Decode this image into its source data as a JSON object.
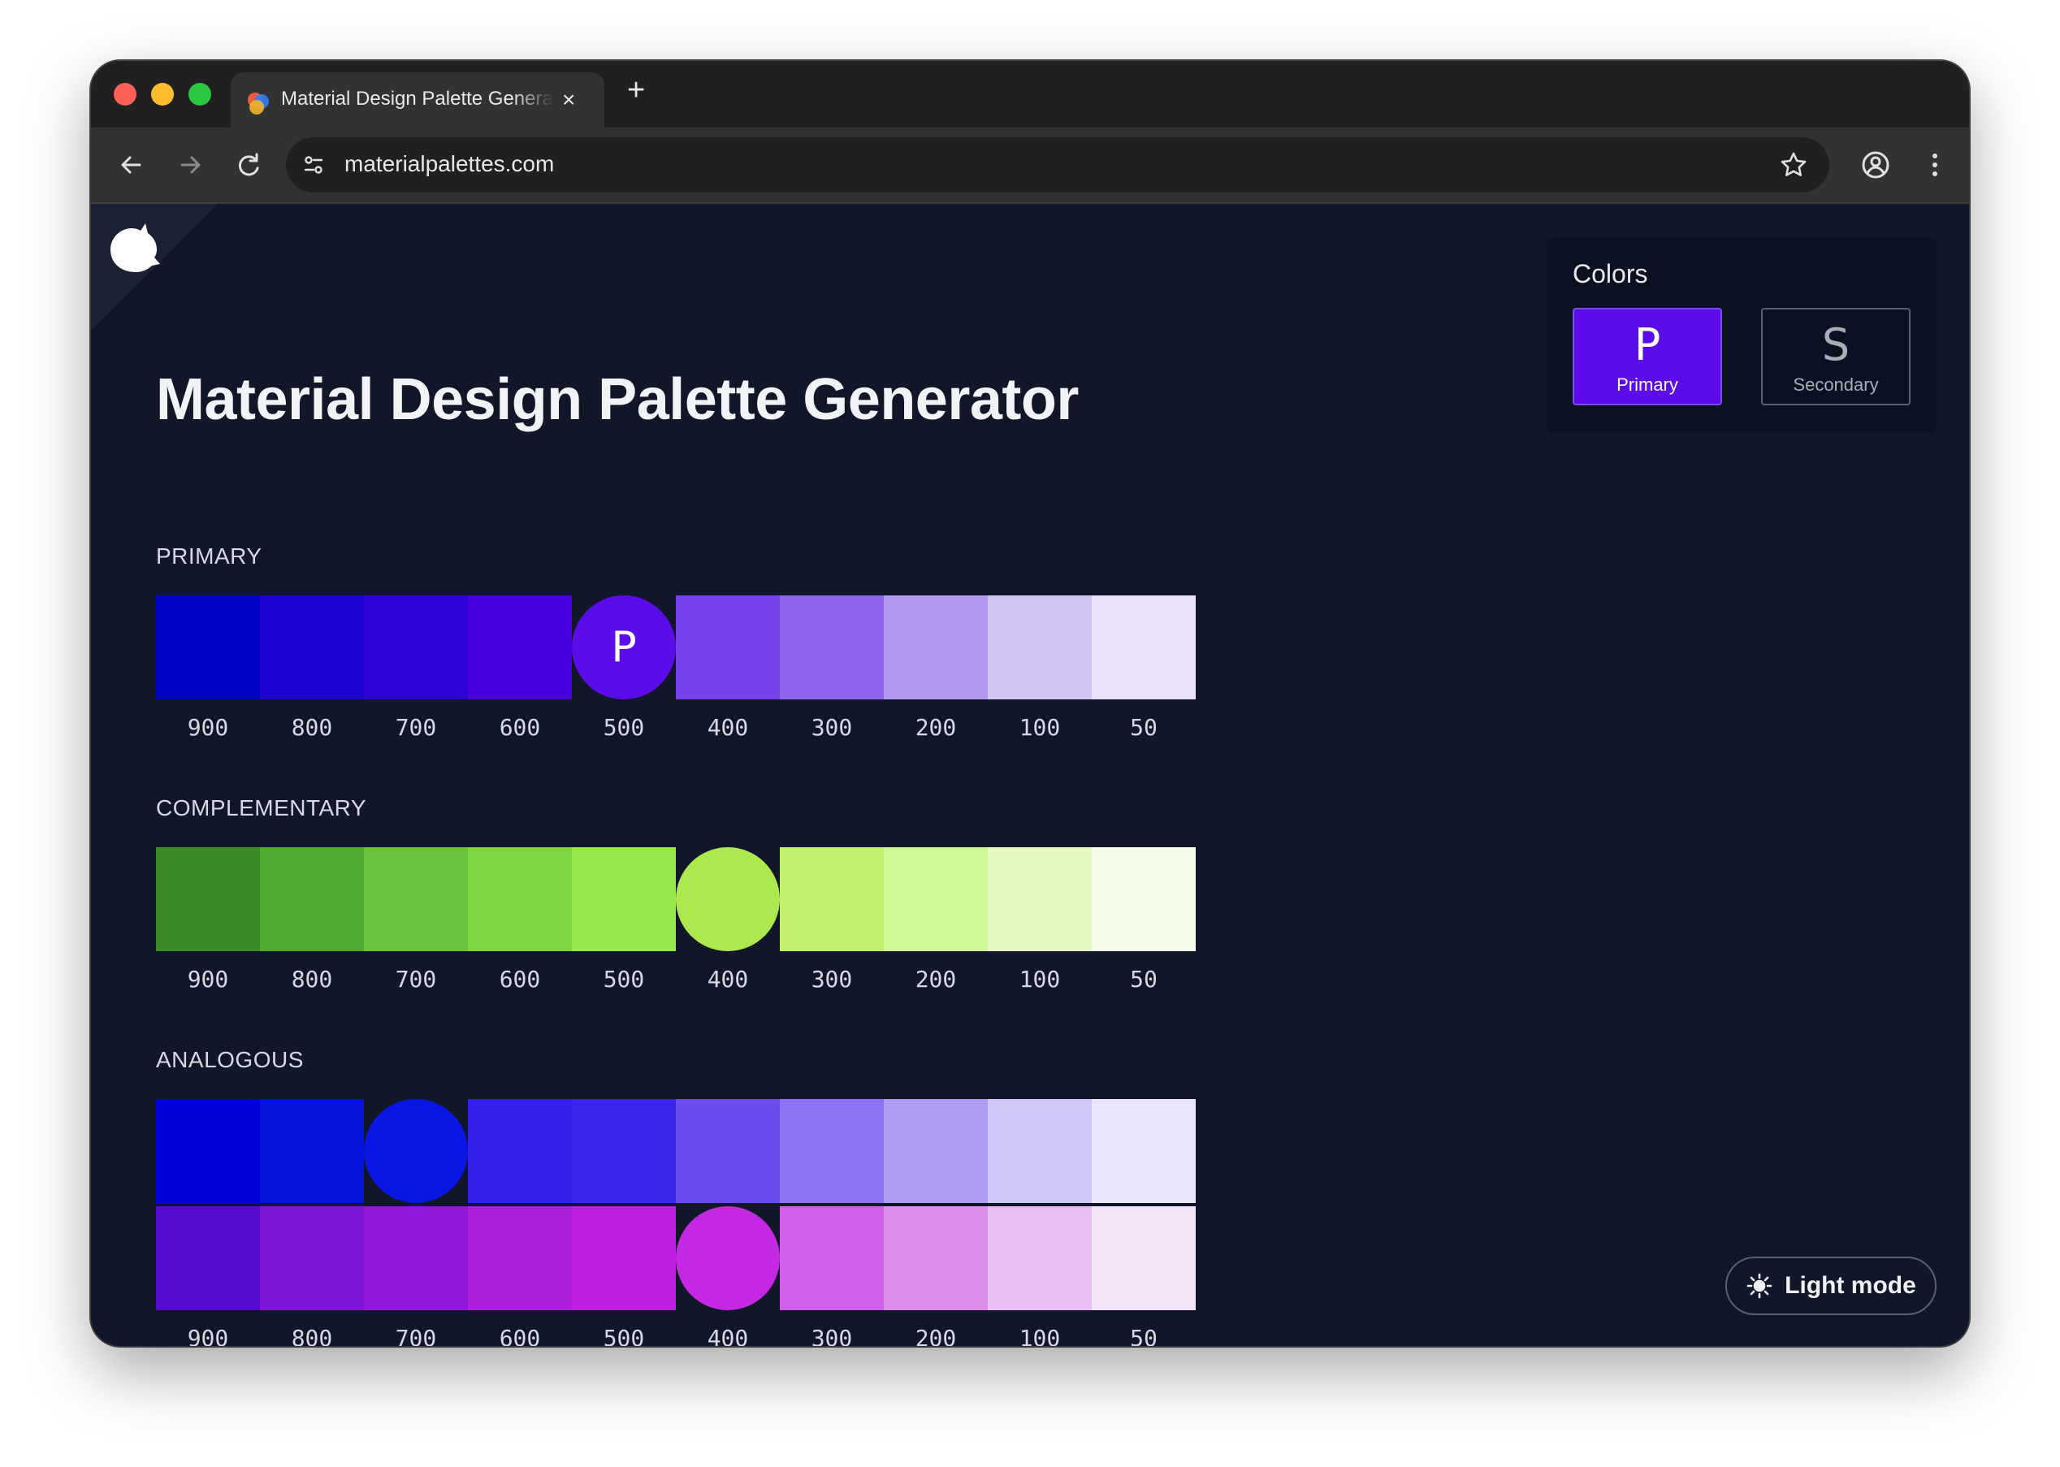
{
  "browser": {
    "tab_title": "Material Design Palette Generator",
    "tab_close": "×",
    "new_tab": "+",
    "url": "materialpalettes.com"
  },
  "page": {
    "title": "Material Design Palette Generator"
  },
  "palettes": [
    {
      "label": "PRIMARY",
      "rows": [
        [
          "#0303c6",
          "#1b02d3",
          "#2d03d9",
          "#4702df",
          "#5c0ce8",
          "#7441ec",
          "#8d66ed",
          "#b197f0",
          "#d0c3f4",
          "#ece3f9"
        ]
      ],
      "main_index": 4,
      "main_letter": "P",
      "shades": [
        "900",
        "800",
        "700",
        "600",
        "500",
        "400",
        "300",
        "200",
        "100",
        "50"
      ]
    },
    {
      "label": "COMPLEMENTARY",
      "rows": [
        [
          "#3c8a27",
          "#52ac32",
          "#68c23a",
          "#82d542",
          "#95e84a",
          "#ade94e",
          "#c0f06e",
          "#d1f695",
          "#e3f9c0",
          "#f3fde6"
        ]
      ],
      "main_index": 5,
      "main_letter": "",
      "shades": [
        "900",
        "800",
        "700",
        "600",
        "500",
        "400",
        "300",
        "200",
        "100",
        "50"
      ]
    },
    {
      "label": "ANALOGOUS",
      "rows": [
        [
          "#0000d9",
          "#0513dc",
          "#0a17e4",
          "#3120e6",
          "#3b27ea",
          "#6a4cf0",
          "#8a72f2",
          "#ad9bf4",
          "#cfc5f7",
          "#ebe6fb"
        ],
        [
          "#550ccf",
          "#7d16d7",
          "#9418da",
          "#ab1edd",
          "#bd1fe0",
          "#c528e3",
          "#d160e8",
          "#dc8eed",
          "#e8bdf2",
          "#f5e3fa"
        ]
      ],
      "main_index": [
        2,
        5
      ],
      "main_letter": "",
      "shades": [
        "900",
        "800",
        "700",
        "600",
        "500",
        "400",
        "300",
        "200",
        "100",
        "50"
      ]
    }
  ],
  "colors_panel": {
    "title": "Colors",
    "primary": {
      "letter": "P",
      "label": "Primary",
      "color": "#5c0ce8"
    },
    "secondary": {
      "letter": "S",
      "label": "Secondary"
    }
  },
  "light_mode_button": {
    "label": "Light mode"
  },
  "icons": {
    "back": "arrow-left-icon",
    "forward": "arrow-right-icon",
    "reload": "reload-icon",
    "site_info": "tune-icon",
    "bookmark": "star-icon",
    "profile": "profile-icon",
    "menu": "kebab-menu-icon",
    "theme": "sun-icon",
    "logo": "cat-logo-icon"
  }
}
